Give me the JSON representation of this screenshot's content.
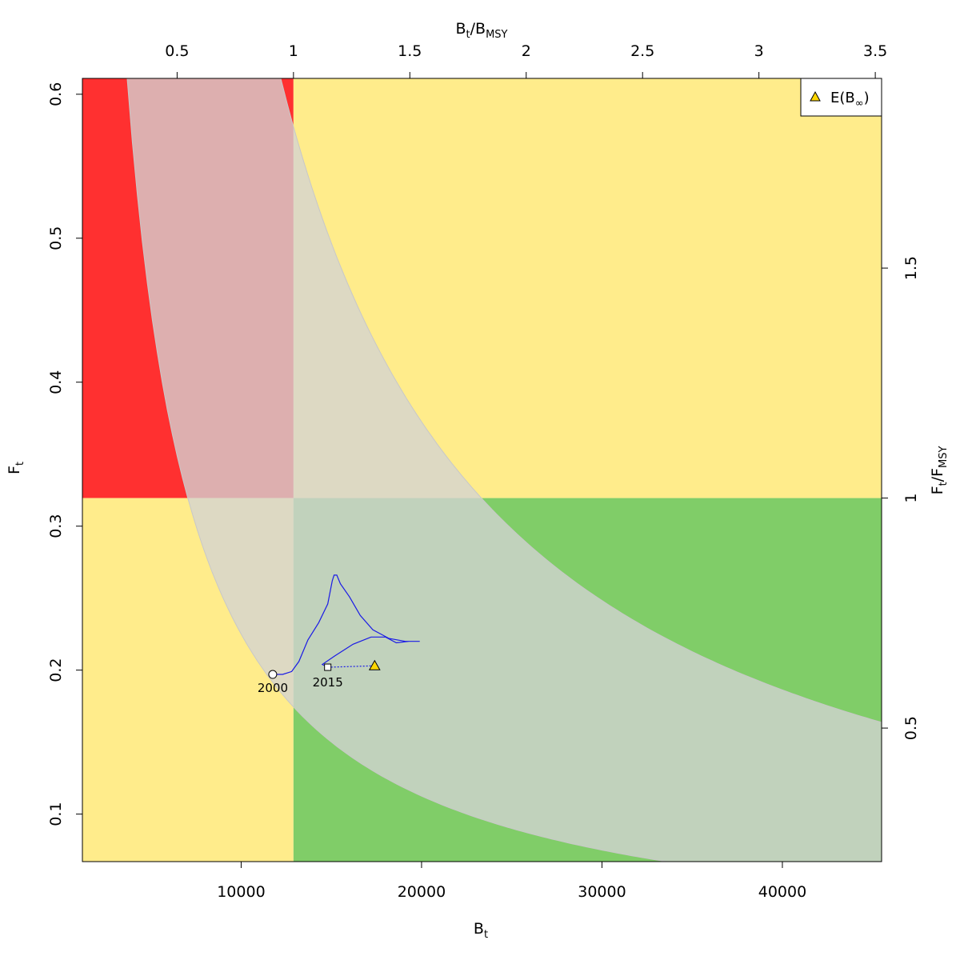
{
  "chart_data": {
    "type": "scatter",
    "title": "",
    "xlabel": "B",
    "xlabel_sub": "t",
    "ylabel": "F",
    "ylabel_sub": "t",
    "xlabel_top": "B",
    "xlabel_top_sub1": "t",
    "xlabel_top_sep": "/B",
    "xlabel_top_sub2": "MSY",
    "ylabel_right": "F",
    "ylabel_right_sub1": "t",
    "ylabel_right_sep": "/F",
    "ylabel_right_sub2": "MSY",
    "xlim": [
      1200,
      45500
    ],
    "ylim": [
      0.067,
      0.611
    ],
    "x_ticks": [
      10000,
      20000,
      30000,
      40000
    ],
    "y_ticks": [
      0.1,
      0.2,
      0.3,
      0.4,
      0.5,
      0.6
    ],
    "top_ticks": [
      0.5,
      1,
      1.5,
      2,
      2.5,
      3,
      3.5
    ],
    "top_tick_labels": [
      "0.5",
      "1",
      "1.5",
      "2",
      "2.5",
      "3",
      "3.5"
    ],
    "right_ticks": [
      0.5,
      1,
      1.5
    ],
    "right_tick_labels": [
      "0.5",
      "1",
      "1.5"
    ],
    "bmsy": 12900,
    "fmsy": 0.3195,
    "msy_curve_constant": 4110,
    "msy_band_lower_constant": 2250,
    "msy_band_upper_constant": 7450,
    "colors": {
      "red": "#ff3030",
      "yellow": "#ffec8b",
      "green": "#80cd68",
      "band": "#d3d3d3",
      "trajectory": "#1a1ae6",
      "triangle": "#ffd700"
    },
    "trajectory": [
      [
        11750,
        0.197
      ],
      [
        12300,
        0.197
      ],
      [
        12800,
        0.199
      ],
      [
        13200,
        0.206
      ],
      [
        13700,
        0.221
      ],
      [
        14300,
        0.233
      ],
      [
        14800,
        0.246
      ],
      [
        15050,
        0.262
      ],
      [
        15150,
        0.266
      ],
      [
        15300,
        0.266
      ],
      [
        15500,
        0.26
      ],
      [
        16000,
        0.251
      ],
      [
        16600,
        0.238
      ],
      [
        17300,
        0.228
      ],
      [
        18200,
        0.222
      ],
      [
        19100,
        0.22
      ],
      [
        19900,
        0.22
      ],
      [
        19300,
        0.22
      ],
      [
        18600,
        0.219
      ],
      [
        18000,
        0.223
      ],
      [
        17200,
        0.223
      ],
      [
        16200,
        0.218
      ],
      [
        15200,
        0.21
      ],
      [
        14500,
        0.204
      ],
      [
        14800,
        0.202
      ]
    ],
    "start_point": {
      "x": 11750,
      "y": 0.197,
      "label": "2000"
    },
    "end_point": {
      "x": 14800,
      "y": 0.202,
      "label": "2015"
    },
    "expected_point": {
      "x": 17400,
      "y": 0.203
    },
    "legend": {
      "position": "top-right",
      "label": "E(B",
      "label_sub": "∞",
      "label_close": ")",
      "symbol": "triangle"
    }
  }
}
